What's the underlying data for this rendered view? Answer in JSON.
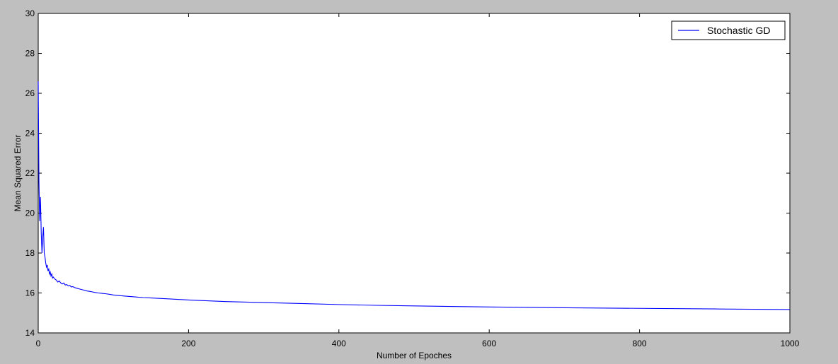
{
  "chart_data": {
    "type": "line",
    "xlabel": "Number of Epoches",
    "ylabel": "Mean Squared Error",
    "xlim": [
      0,
      1000
    ],
    "ylim": [
      14,
      30
    ],
    "xticks": [
      "0",
      "200",
      "400",
      "600",
      "800",
      "1000"
    ],
    "yticks": [
      "14",
      "16",
      "18",
      "20",
      "22",
      "24",
      "26",
      "28",
      "30"
    ],
    "legend": {
      "position": "upper-right"
    },
    "grid": false,
    "series": [
      {
        "name": "Stochastic GD",
        "color": "#0000ff",
        "x": [
          0,
          1,
          2,
          3,
          4,
          5,
          6,
          7,
          8,
          9,
          10,
          11,
          12,
          13,
          14,
          15,
          16,
          17,
          18,
          19,
          20,
          22,
          24,
          26,
          28,
          30,
          32,
          34,
          36,
          38,
          40,
          42,
          44,
          46,
          48,
          50,
          55,
          60,
          65,
          70,
          75,
          80,
          85,
          90,
          95,
          100,
          110,
          120,
          130,
          140,
          150,
          175,
          200,
          250,
          300,
          350,
          400,
          450,
          500,
          600,
          700,
          800,
          900,
          1000
        ],
        "y": [
          26.6,
          21.5,
          19.6,
          20.8,
          19.0,
          18.0,
          18.8,
          19.3,
          18.0,
          17.8,
          17.5,
          17.3,
          17.4,
          17.1,
          17.2,
          16.95,
          17.05,
          16.85,
          16.95,
          16.75,
          16.8,
          16.7,
          16.65,
          16.55,
          16.6,
          16.5,
          16.45,
          16.5,
          16.4,
          16.42,
          16.35,
          16.38,
          16.3,
          16.32,
          16.28,
          16.25,
          16.2,
          16.15,
          16.1,
          16.07,
          16.03,
          16.0,
          15.98,
          15.96,
          15.93,
          15.9,
          15.86,
          15.83,
          15.8,
          15.77,
          15.75,
          15.7,
          15.65,
          15.57,
          15.52,
          15.47,
          15.42,
          15.38,
          15.35,
          15.3,
          15.26,
          15.23,
          15.2,
          15.17
        ]
      }
    ]
  }
}
